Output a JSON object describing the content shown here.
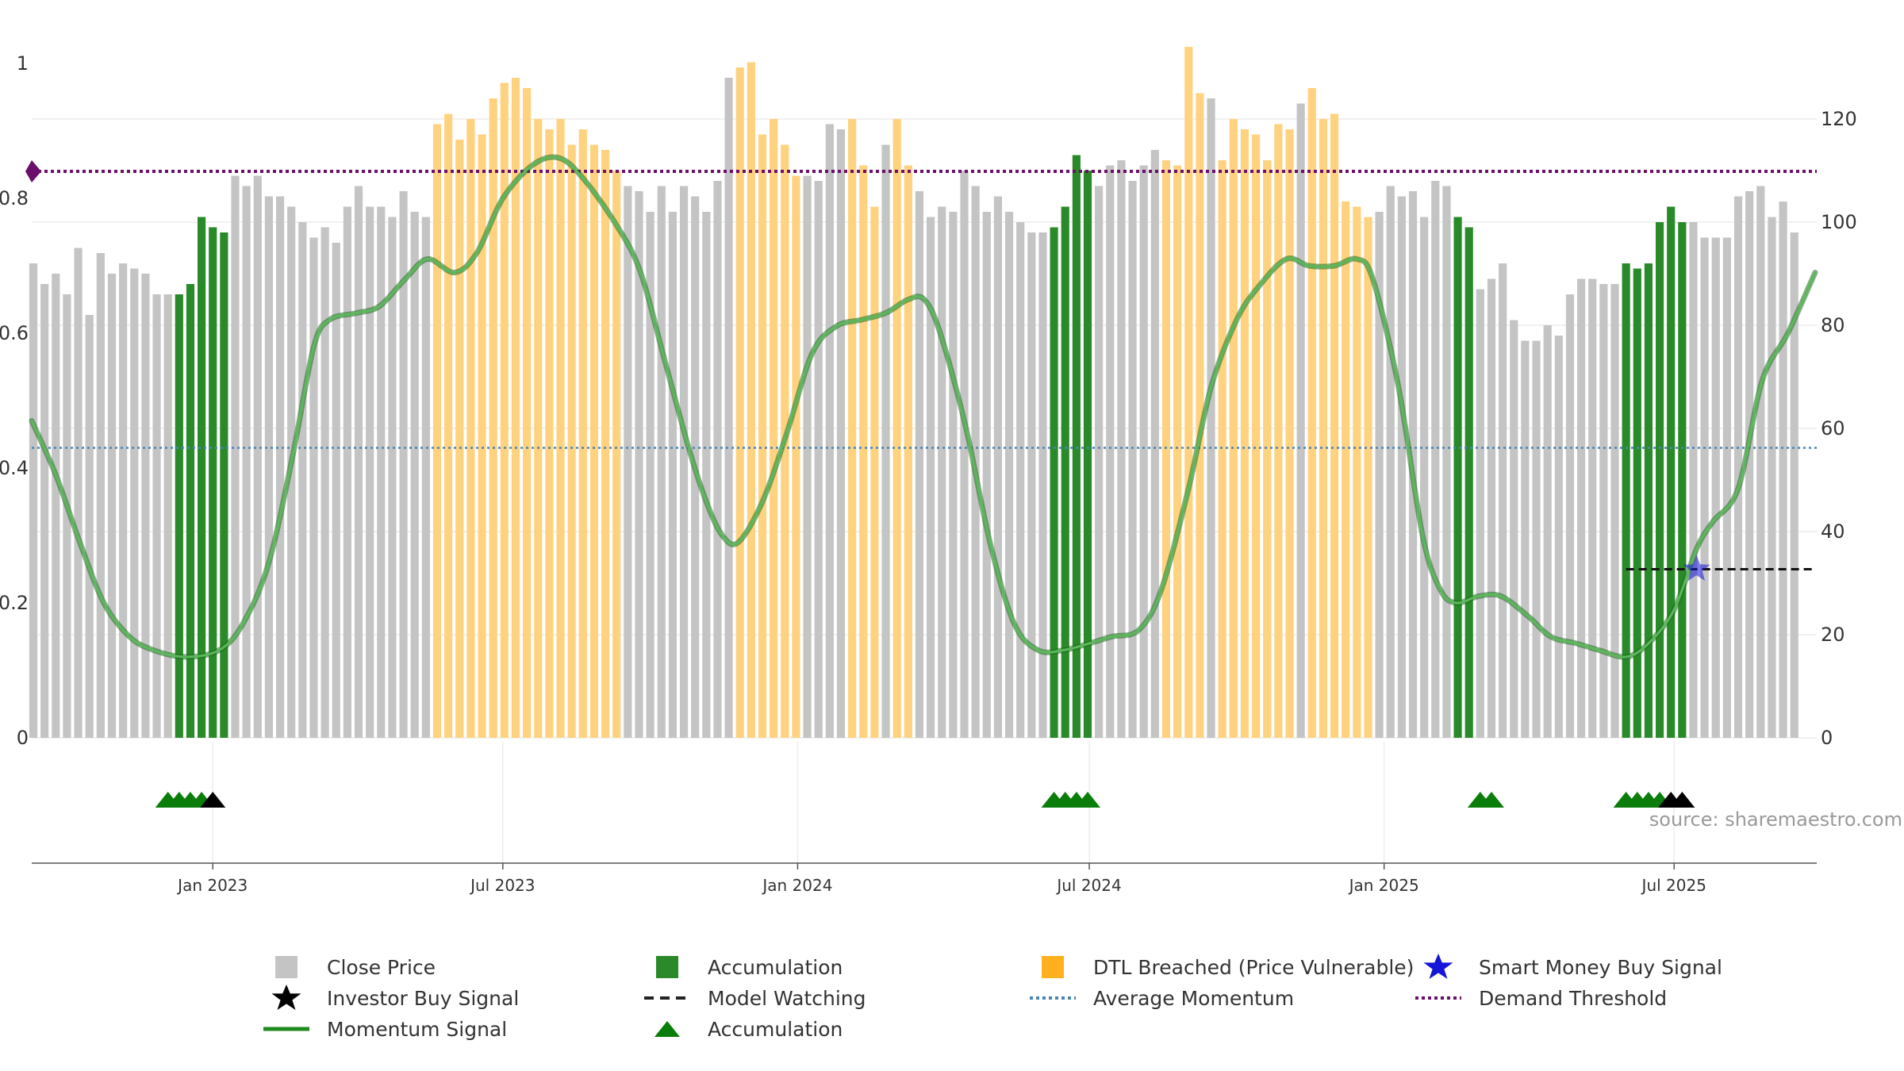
{
  "chart_data": {
    "type": "bar",
    "source_text": "source: sharemaestro.com",
    "left_axis": {
      "ticks": [
        "0",
        "0.2",
        "0.4",
        "0.6",
        "0.8",
        "1"
      ],
      "range": [
        0,
        1
      ]
    },
    "right_axis": {
      "ticks": [
        "0",
        "20",
        "40",
        "60",
        "80",
        "100",
        "120"
      ],
      "range": [
        0,
        120
      ]
    },
    "x_axis": {
      "range": [
        "2022-09-10",
        "2025-09-28"
      ],
      "ticks": [
        {
          "date": "2023-01-01",
          "label": "Jan 2023"
        },
        {
          "date": "2023-07-01",
          "label": "Jul 2023"
        },
        {
          "date": "2024-01-01",
          "label": "Jan 2024"
        },
        {
          "date": "2024-07-01",
          "label": "Jul 2024"
        },
        {
          "date": "2025-01-01",
          "label": "Jan 2025"
        },
        {
          "date": "2025-07-01",
          "label": "Jul 2025"
        }
      ]
    },
    "colors": {
      "close": "#c4c4c4",
      "accumulation": "#2a8a2a",
      "dtl": "#ffd27f",
      "momentum": "#2e8b2e",
      "average": "#4a86b4",
      "demand": "#6b0f6b",
      "smart_money": "#1515d8",
      "watching": "#111111",
      "investor": "#000000",
      "acc_triangle": "#0a7d0a"
    },
    "close_price_series": {
      "start_date": "2022-09-11",
      "interval_days": 7,
      "values": [
        92,
        88,
        90,
        86,
        95,
        82,
        94,
        90,
        92,
        91,
        90,
        86,
        86,
        86,
        88,
        101,
        99,
        98,
        109,
        107,
        109,
        105,
        105,
        103,
        100,
        97,
        99,
        96,
        103,
        107,
        103,
        103,
        101,
        106,
        102,
        101,
        119,
        121,
        116,
        120,
        117,
        124,
        127,
        128,
        126,
        120,
        118,
        120,
        115,
        118,
        115,
        114,
        110,
        107,
        106,
        102,
        107,
        102,
        107,
        105,
        102,
        108,
        128,
        130,
        131,
        117,
        120,
        115,
        109,
        109,
        108,
        119,
        118,
        120,
        111,
        103,
        115,
        120,
        111,
        106,
        101,
        103,
        102,
        110,
        107,
        102,
        105,
        102,
        100,
        98,
        98,
        99,
        103,
        113,
        110,
        107,
        111,
        112,
        108,
        111,
        114,
        112,
        111,
        134,
        125,
        124,
        112,
        120,
        118,
        117,
        112,
        119,
        118,
        123,
        126,
        120,
        121,
        104,
        103,
        101,
        102,
        107,
        105,
        106,
        101,
        108,
        107,
        101,
        99,
        87,
        89,
        92,
        81,
        77,
        77,
        80,
        78,
        86,
        89,
        89,
        88,
        88,
        92,
        91,
        92,
        100,
        103,
        100,
        100,
        97,
        97,
        97,
        105,
        106,
        107,
        101,
        104,
        98
      ],
      "segments": [
        {
          "range": [
            0,
            12
          ],
          "state": "close"
        },
        {
          "range": [
            13,
            17
          ],
          "state": "accumulation"
        },
        {
          "range": [
            18,
            35
          ],
          "state": "close"
        },
        {
          "range": [
            36,
            52
          ],
          "state": "dtl"
        },
        {
          "range": [
            53,
            62
          ],
          "state": "close"
        },
        {
          "range": [
            63,
            68
          ],
          "state": "dtl"
        },
        {
          "range": [
            69,
            72
          ],
          "state": "close"
        },
        {
          "range": [
            73,
            75
          ],
          "state": "dtl"
        },
        {
          "range": [
            76,
            76
          ],
          "state": "close"
        },
        {
          "range": [
            77,
            78
          ],
          "state": "dtl"
        },
        {
          "range": [
            79,
            90
          ],
          "state": "close"
        },
        {
          "range": [
            91,
            94
          ],
          "state": "accumulation"
        },
        {
          "range": [
            95,
            100
          ],
          "state": "close"
        },
        {
          "range": [
            101,
            104
          ],
          "state": "dtl"
        },
        {
          "range": [
            105,
            105
          ],
          "state": "close"
        },
        {
          "range": [
            106,
            112
          ],
          "state": "dtl"
        },
        {
          "range": [
            113,
            113
          ],
          "state": "close"
        },
        {
          "range": [
            114,
            119
          ],
          "state": "dtl"
        },
        {
          "range": [
            120,
            126
          ],
          "state": "close"
        },
        {
          "range": [
            127,
            128
          ],
          "state": "accumulation"
        },
        {
          "range": [
            129,
            141
          ],
          "state": "close"
        },
        {
          "range": [
            142,
            147
          ],
          "state": "accumulation"
        },
        {
          "range": [
            148,
            156
          ],
          "state": "close"
        }
      ]
    },
    "momentum_signal": [
      [
        "2022-09-10",
        0.47
      ],
      [
        "2022-09-25",
        0.39
      ],
      [
        "2022-10-10",
        0.29
      ],
      [
        "2022-10-25",
        0.2
      ],
      [
        "2022-11-10",
        0.15
      ],
      [
        "2022-11-25",
        0.13
      ],
      [
        "2022-12-15",
        0.12
      ],
      [
        "2023-01-05",
        0.13
      ],
      [
        "2023-01-20",
        0.17
      ],
      [
        "2023-02-05",
        0.26
      ],
      [
        "2023-02-20",
        0.42
      ],
      [
        "2023-03-05",
        0.58
      ],
      [
        "2023-03-15",
        0.62
      ],
      [
        "2023-04-01",
        0.63
      ],
      [
        "2023-04-15",
        0.64
      ],
      [
        "2023-05-01",
        0.68
      ],
      [
        "2023-05-15",
        0.71
      ],
      [
        "2023-06-01",
        0.69
      ],
      [
        "2023-06-15",
        0.72
      ],
      [
        "2023-07-01",
        0.8
      ],
      [
        "2023-07-20",
        0.85
      ],
      [
        "2023-08-05",
        0.86
      ],
      [
        "2023-08-20",
        0.83
      ],
      [
        "2023-09-10",
        0.76
      ],
      [
        "2023-09-25",
        0.69
      ],
      [
        "2023-10-10",
        0.56
      ],
      [
        "2023-10-25",
        0.43
      ],
      [
        "2023-11-05",
        0.35
      ],
      [
        "2023-11-15",
        0.3
      ],
      [
        "2023-11-25",
        0.29
      ],
      [
        "2023-12-10",
        0.35
      ],
      [
        "2023-12-25",
        0.45
      ],
      [
        "2024-01-10",
        0.57
      ],
      [
        "2024-01-25",
        0.61
      ],
      [
        "2024-02-10",
        0.62
      ],
      [
        "2024-02-25",
        0.63
      ],
      [
        "2024-03-10",
        0.65
      ],
      [
        "2024-03-20",
        0.65
      ],
      [
        "2024-03-30",
        0.6
      ],
      [
        "2024-04-15",
        0.46
      ],
      [
        "2024-04-30",
        0.29
      ],
      [
        "2024-05-15",
        0.17
      ],
      [
        "2024-05-30",
        0.13
      ],
      [
        "2024-06-15",
        0.13
      ],
      [
        "2024-07-01",
        0.14
      ],
      [
        "2024-07-15",
        0.15
      ],
      [
        "2024-08-01",
        0.16
      ],
      [
        "2024-08-15",
        0.22
      ],
      [
        "2024-09-01",
        0.37
      ],
      [
        "2024-09-15",
        0.52
      ],
      [
        "2024-10-01",
        0.62
      ],
      [
        "2024-10-15",
        0.67
      ],
      [
        "2024-11-01",
        0.71
      ],
      [
        "2024-11-15",
        0.7
      ],
      [
        "2024-12-01",
        0.7
      ],
      [
        "2024-12-15",
        0.71
      ],
      [
        "2024-12-25",
        0.68
      ],
      [
        "2025-01-10",
        0.52
      ],
      [
        "2025-01-25",
        0.3
      ],
      [
        "2025-02-05",
        0.22
      ],
      [
        "2025-02-15",
        0.2
      ],
      [
        "2025-03-01",
        0.21
      ],
      [
        "2025-03-15",
        0.21
      ],
      [
        "2025-04-01",
        0.18
      ],
      [
        "2025-04-15",
        0.15
      ],
      [
        "2025-05-01",
        0.14
      ],
      [
        "2025-05-15",
        0.13
      ],
      [
        "2025-06-01",
        0.12
      ],
      [
        "2025-06-15",
        0.14
      ],
      [
        "2025-07-01",
        0.19
      ],
      [
        "2025-07-15",
        0.28
      ],
      [
        "2025-07-25",
        0.32
      ],
      [
        "2025-08-10",
        0.37
      ],
      [
        "2025-08-25",
        0.53
      ],
      [
        "2025-09-10",
        0.6
      ],
      [
        "2025-09-27",
        0.69
      ]
    ],
    "average_momentum": 0.43,
    "demand_threshold": 0.84,
    "model_watching": {
      "start": "2025-06-01",
      "end": "2025-09-27",
      "value": 0.25
    },
    "smart_money_buy_signal": {
      "date": "2025-07-15",
      "value": 0.25
    },
    "accumulation_triangles": [
      "2022-12-04",
      "2022-12-11",
      "2022-12-18",
      "2022-12-25",
      "2024-06-09",
      "2024-06-16",
      "2024-06-23",
      "2024-06-30",
      "2025-03-02",
      "2025-03-09",
      "2025-06-01",
      "2025-06-08",
      "2025-06-15",
      "2025-06-22"
    ],
    "investor_triangles": [
      "2023-01-01",
      "2025-06-29",
      "2025-07-06"
    ],
    "legend": [
      {
        "label": "Close Price",
        "key": "gray-square"
      },
      {
        "label": "Accumulation",
        "key": "green-square"
      },
      {
        "label": "DTL Breached (Price Vulnerable)",
        "key": "orange-square"
      },
      {
        "label": "Smart Money Buy Signal",
        "key": "blue-star"
      },
      {
        "label": "Investor Buy Signal",
        "key": "black-star"
      },
      {
        "label": "Model Watching",
        "key": "black-dash"
      },
      {
        "label": "Average Momentum",
        "key": "blue-dotted"
      },
      {
        "label": "Demand Threshold",
        "key": "purple-dotted"
      },
      {
        "label": "Momentum Signal",
        "key": "green-line"
      },
      {
        "label": "Accumulation",
        "key": "green-triangle"
      }
    ]
  }
}
